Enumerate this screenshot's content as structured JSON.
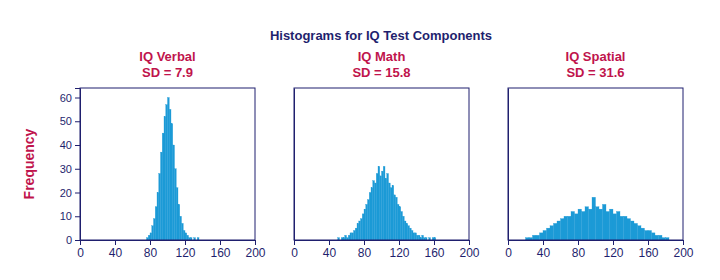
{
  "title": "Histograms for IQ Test Components",
  "ylabel": "Frequency",
  "chart_data": [
    {
      "type": "histogram",
      "title": "IQ Verbal",
      "subtitle": "SD = 7.9",
      "color": "#1c9ad6",
      "bins": [
        76,
        78,
        80,
        82,
        84,
        86,
        88,
        90,
        92,
        94,
        96,
        98,
        100,
        102,
        104,
        106,
        108,
        110,
        112,
        114,
        116,
        118,
        120,
        122,
        124,
        126,
        128,
        130,
        132,
        134,
        136
      ],
      "values": [
        1,
        2,
        3,
        6,
        9,
        14,
        20,
        28,
        37,
        45,
        52,
        57,
        60,
        55,
        49,
        40,
        30,
        22,
        15,
        10,
        7,
        4,
        3,
        2,
        1,
        1,
        0,
        1,
        0,
        1
      ],
      "xlim": [
        0,
        200
      ],
      "xticks": [
        0,
        40,
        80,
        120,
        160,
        200
      ],
      "ylim": [
        0,
        64
      ],
      "yticks": [
        0,
        10,
        20,
        30,
        40,
        50,
        60
      ]
    },
    {
      "type": "histogram",
      "title": "IQ Math",
      "subtitle": "SD = 15.8",
      "color": "#1c9ad6",
      "bins": [
        50,
        52,
        54,
        56,
        58,
        60,
        62,
        64,
        66,
        68,
        70,
        72,
        74,
        76,
        78,
        80,
        82,
        84,
        86,
        88,
        90,
        92,
        94,
        96,
        98,
        100,
        102,
        104,
        106,
        108,
        110,
        112,
        114,
        116,
        118,
        120,
        122,
        124,
        126,
        128,
        130,
        132,
        134,
        136,
        138,
        140,
        142,
        144,
        146,
        148,
        150,
        152,
        154,
        156,
        158,
        160,
        162
      ],
      "values": [
        1,
        0,
        1,
        1,
        2,
        1,
        2,
        3,
        3,
        4,
        5,
        7,
        8,
        9,
        11,
        13,
        15,
        17,
        20,
        22,
        25,
        24,
        28,
        31,
        27,
        29,
        31,
        26,
        28,
        24,
        22,
        23,
        19,
        18,
        15,
        14,
        12,
        10,
        8,
        7,
        6,
        5,
        4,
        3,
        3,
        2,
        2,
        1,
        2,
        1,
        1,
        0,
        1,
        0,
        1,
        1
      ],
      "xlim": [
        0,
        200
      ],
      "xticks": [
        0,
        40,
        80,
        120,
        160,
        200
      ],
      "ylim": [
        0,
        64
      ],
      "tick_labels": "x"
    },
    {
      "type": "histogram",
      "title": "IQ Spatial",
      "subtitle": "SD = 31.6",
      "color": "#1c9ad6",
      "bins": [
        20,
        24,
        28,
        32,
        36,
        40,
        44,
        48,
        52,
        56,
        60,
        64,
        68,
        72,
        76,
        80,
        84,
        88,
        92,
        96,
        100,
        104,
        108,
        112,
        116,
        120,
        124,
        128,
        132,
        136,
        140,
        144,
        148,
        152,
        156,
        160,
        164,
        168,
        172,
        176,
        180,
        184
      ],
      "values": [
        1,
        1,
        2,
        2,
        3,
        4,
        5,
        6,
        7,
        8,
        9,
        10,
        10,
        12,
        11,
        13,
        12,
        14,
        13,
        18,
        14,
        13,
        15,
        12,
        13,
        11,
        12,
        10,
        10,
        9,
        8,
        7,
        6,
        5,
        4,
        4,
        3,
        2,
        2,
        1,
        1
      ],
      "xlim": [
        0,
        200
      ],
      "xticks": [
        0,
        40,
        80,
        120,
        160,
        200
      ],
      "ylim": [
        0,
        64
      ],
      "tick_labels": "x"
    }
  ]
}
